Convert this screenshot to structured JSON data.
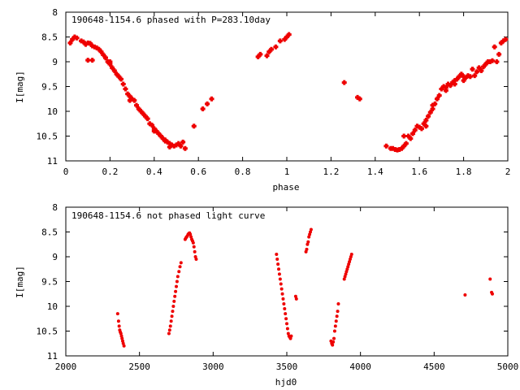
{
  "chart_data": [
    {
      "type": "scatter",
      "title": "190648-1154.6 phased with P=283.10day",
      "xlabel": "phase",
      "ylabel": "I[mag]",
      "xlim": [
        0,
        2
      ],
      "ylim": [
        8,
        11
      ],
      "y_inverted": true,
      "x_ticks": [
        "0",
        "0.2",
        "0.4",
        "0.6",
        "0.8",
        "1",
        "1.2",
        "1.4",
        "1.6",
        "1.8",
        "2"
      ],
      "y_ticks": [
        "8",
        "8.5",
        "9",
        "9.5",
        "10",
        "10.5",
        "11"
      ],
      "grid": false,
      "color": "#ee0000",
      "points": [
        [
          0.02,
          8.62
        ],
        [
          0.03,
          8.55
        ],
        [
          0.04,
          8.5
        ],
        [
          0.05,
          8.52
        ],
        [
          0.07,
          8.58
        ],
        [
          0.08,
          8.6
        ],
        [
          0.09,
          8.65
        ],
        [
          0.1,
          8.62
        ],
        [
          0.11,
          8.63
        ],
        [
          0.12,
          8.68
        ],
        [
          0.13,
          8.7
        ],
        [
          0.14,
          8.72
        ],
        [
          0.15,
          8.75
        ],
        [
          0.16,
          8.8
        ],
        [
          0.17,
          8.86
        ],
        [
          0.18,
          8.92
        ],
        [
          0.19,
          9.0
        ],
        [
          0.2,
          9.05
        ],
        [
          0.21,
          9.12
        ],
        [
          0.22,
          9.18
        ],
        [
          0.23,
          9.25
        ],
        [
          0.24,
          9.3
        ],
        [
          0.25,
          9.35
        ],
        [
          0.26,
          9.45
        ],
        [
          0.27,
          9.55
        ],
        [
          0.28,
          9.65
        ],
        [
          0.29,
          9.7
        ],
        [
          0.3,
          9.75
        ],
        [
          0.31,
          9.78
        ],
        [
          0.32,
          9.88
        ],
        [
          0.33,
          9.95
        ],
        [
          0.34,
          10.0
        ],
        [
          0.35,
          10.05
        ],
        [
          0.36,
          10.1
        ],
        [
          0.37,
          10.15
        ],
        [
          0.38,
          10.25
        ],
        [
          0.39,
          10.28
        ],
        [
          0.4,
          10.35
        ],
        [
          0.41,
          10.4
        ],
        [
          0.42,
          10.45
        ],
        [
          0.43,
          10.5
        ],
        [
          0.44,
          10.55
        ],
        [
          0.45,
          10.58
        ],
        [
          0.46,
          10.62
        ],
        [
          0.47,
          10.65
        ],
        [
          0.48,
          10.68
        ],
        [
          0.49,
          10.7
        ],
        [
          0.5,
          10.68
        ],
        [
          0.51,
          10.65
        ],
        [
          0.52,
          10.7
        ],
        [
          0.53,
          10.62
        ],
        [
          0.54,
          10.75
        ],
        [
          0.1,
          8.97
        ],
        [
          0.12,
          8.97
        ],
        [
          0.18,
          8.92
        ],
        [
          0.2,
          9.0
        ],
        [
          0.4,
          10.4
        ],
        [
          0.45,
          10.6
        ],
        [
          0.47,
          10.72
        ],
        [
          0.29,
          9.78
        ],
        [
          0.58,
          10.3
        ],
        [
          0.62,
          9.95
        ],
        [
          0.64,
          9.85
        ],
        [
          0.66,
          9.75
        ],
        [
          0.87,
          8.9
        ],
        [
          0.88,
          8.85
        ],
        [
          0.91,
          8.88
        ],
        [
          0.92,
          8.8
        ],
        [
          0.93,
          8.75
        ],
        [
          0.95,
          8.7
        ],
        [
          0.97,
          8.58
        ],
        [
          0.99,
          8.55
        ],
        [
          1.0,
          8.5
        ],
        [
          1.01,
          8.45
        ],
        [
          1.26,
          9.42
        ],
        [
          1.32,
          9.72
        ],
        [
          1.33,
          9.75
        ],
        [
          1.45,
          10.7
        ],
        [
          1.47,
          10.75
        ],
        [
          1.49,
          10.77
        ],
        [
          1.5,
          10.78
        ],
        [
          1.51,
          10.77
        ],
        [
          1.52,
          10.75
        ],
        [
          1.53,
          10.7
        ],
        [
          1.54,
          10.65
        ],
        [
          1.55,
          10.5
        ],
        [
          1.56,
          10.55
        ],
        [
          1.57,
          10.45
        ],
        [
          1.58,
          10.38
        ],
        [
          1.59,
          10.3
        ],
        [
          1.6,
          10.32
        ],
        [
          1.61,
          10.35
        ],
        [
          1.62,
          10.25
        ],
        [
          1.63,
          10.18
        ],
        [
          1.64,
          10.1
        ],
        [
          1.65,
          10.02
        ],
        [
          1.66,
          9.95
        ],
        [
          1.67,
          9.85
        ],
        [
          1.68,
          9.75
        ],
        [
          1.69,
          9.68
        ],
        [
          1.7,
          9.55
        ],
        [
          1.71,
          9.5
        ],
        [
          1.72,
          9.52
        ],
        [
          1.73,
          9.45
        ],
        [
          1.74,
          9.48
        ],
        [
          1.75,
          9.42
        ],
        [
          1.76,
          9.38
        ],
        [
          1.77,
          9.35
        ],
        [
          1.78,
          9.3
        ],
        [
          1.79,
          9.25
        ],
        [
          1.8,
          9.38
        ],
        [
          1.81,
          9.32
        ],
        [
          1.82,
          9.28
        ],
        [
          1.83,
          9.3
        ],
        [
          1.84,
          9.15
        ],
        [
          1.85,
          9.28
        ],
        [
          1.86,
          9.2
        ],
        [
          1.87,
          9.12
        ],
        [
          1.88,
          9.18
        ],
        [
          1.89,
          9.1
        ],
        [
          1.9,
          9.05
        ],
        [
          1.91,
          9.0
        ],
        [
          1.92,
          9.0
        ],
        [
          1.93,
          8.98
        ],
        [
          1.94,
          8.7
        ],
        [
          1.95,
          9.0
        ],
        [
          1.96,
          8.85
        ],
        [
          1.97,
          8.62
        ],
        [
          1.98,
          8.58
        ],
        [
          1.99,
          8.55
        ],
        [
          1.53,
          10.5
        ],
        [
          1.48,
          10.75
        ],
        [
          1.63,
          10.3
        ],
        [
          1.66,
          9.88
        ],
        [
          1.72,
          9.58
        ],
        [
          1.76,
          9.45
        ],
        [
          1.8,
          9.3
        ]
      ]
    },
    {
      "type": "scatter",
      "title": "190648-1154.6 not phased light curve",
      "xlabel": "hjd0",
      "ylabel": "I[mag]",
      "xlim": [
        2000,
        5000
      ],
      "ylim": [
        8,
        11
      ],
      "y_inverted": true,
      "x_ticks": [
        "2000",
        "2500",
        "3000",
        "3500",
        "4000",
        "4500",
        "5000"
      ],
      "y_ticks": [
        "8",
        "8.5",
        "9",
        "9.5",
        "10",
        "10.5",
        "11"
      ],
      "grid": false,
      "color": "#ee0000",
      "points": [
        [
          2352,
          10.15
        ],
        [
          2358,
          10.3
        ],
        [
          2362,
          10.4
        ],
        [
          2366,
          10.48
        ],
        [
          2370,
          10.52
        ],
        [
          2374,
          10.55
        ],
        [
          2378,
          10.6
        ],
        [
          2382,
          10.65
        ],
        [
          2386,
          10.7
        ],
        [
          2390,
          10.75
        ],
        [
          2395,
          10.8
        ],
        [
          2700,
          10.55
        ],
        [
          2705,
          10.48
        ],
        [
          2710,
          10.4
        ],
        [
          2715,
          10.3
        ],
        [
          2720,
          10.2
        ],
        [
          2725,
          10.1
        ],
        [
          2730,
          10.0
        ],
        [
          2735,
          9.9
        ],
        [
          2740,
          9.8
        ],
        [
          2745,
          9.7
        ],
        [
          2750,
          9.6
        ],
        [
          2755,
          9.5
        ],
        [
          2760,
          9.4
        ],
        [
          2768,
          9.3
        ],
        [
          2775,
          9.2
        ],
        [
          2782,
          9.12
        ],
        [
          2810,
          8.65
        ],
        [
          2815,
          8.62
        ],
        [
          2820,
          8.6
        ],
        [
          2825,
          8.58
        ],
        [
          2830,
          8.55
        ],
        [
          2835,
          8.53
        ],
        [
          2840,
          8.52
        ],
        [
          2845,
          8.55
        ],
        [
          2850,
          8.6
        ],
        [
          2855,
          8.65
        ],
        [
          2860,
          8.68
        ],
        [
          2865,
          8.72
        ],
        [
          2870,
          8.8
        ],
        [
          2875,
          8.9
        ],
        [
          2880,
          9.0
        ],
        [
          2885,
          9.05
        ],
        [
          3430,
          8.95
        ],
        [
          3435,
          9.05
        ],
        [
          3440,
          9.15
        ],
        [
          3445,
          9.25
        ],
        [
          3450,
          9.35
        ],
        [
          3455,
          9.45
        ],
        [
          3460,
          9.55
        ],
        [
          3465,
          9.65
        ],
        [
          3470,
          9.75
        ],
        [
          3475,
          9.85
        ],
        [
          3480,
          9.95
        ],
        [
          3485,
          10.05
        ],
        [
          3490,
          10.15
        ],
        [
          3495,
          10.25
        ],
        [
          3500,
          10.35
        ],
        [
          3505,
          10.45
        ],
        [
          3510,
          10.55
        ],
        [
          3515,
          10.6
        ],
        [
          3520,
          10.62
        ],
        [
          3525,
          10.65
        ],
        [
          3530,
          10.6
        ],
        [
          3560,
          9.8
        ],
        [
          3565,
          9.85
        ],
        [
          3630,
          8.9
        ],
        [
          3635,
          8.85
        ],
        [
          3640,
          8.75
        ],
        [
          3645,
          8.7
        ],
        [
          3650,
          8.6
        ],
        [
          3655,
          8.55
        ],
        [
          3660,
          8.5
        ],
        [
          3665,
          8.45
        ],
        [
          3800,
          10.7
        ],
        [
          3805,
          10.75
        ],
        [
          3810,
          10.78
        ],
        [
          3815,
          10.72
        ],
        [
          3820,
          10.65
        ],
        [
          3825,
          10.5
        ],
        [
          3830,
          10.4
        ],
        [
          3835,
          10.3
        ],
        [
          3840,
          10.2
        ],
        [
          3845,
          10.1
        ],
        [
          3850,
          9.95
        ],
        [
          3890,
          9.45
        ],
        [
          3895,
          9.4
        ],
        [
          3900,
          9.35
        ],
        [
          3905,
          9.3
        ],
        [
          3910,
          9.25
        ],
        [
          3915,
          9.2
        ],
        [
          3920,
          9.15
        ],
        [
          3925,
          9.1
        ],
        [
          3930,
          9.05
        ],
        [
          3935,
          9.0
        ],
        [
          3940,
          8.95
        ],
        [
          4710,
          9.77
        ],
        [
          4880,
          9.45
        ],
        [
          4890,
          9.72
        ],
        [
          4895,
          9.75
        ]
      ]
    }
  ]
}
